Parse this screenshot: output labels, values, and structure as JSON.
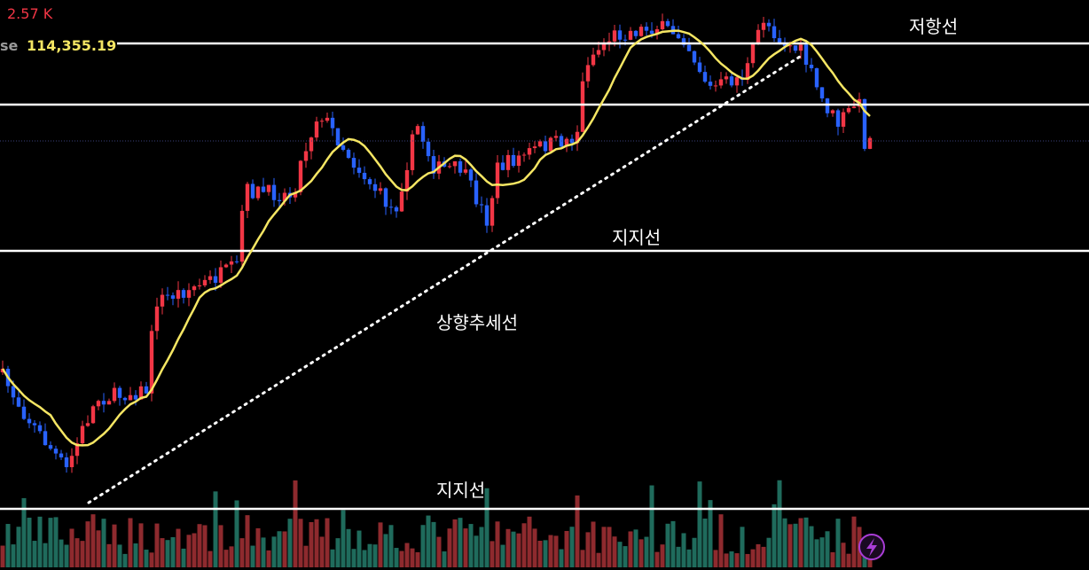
{
  "header": {
    "volume": "2.57 K",
    "price_label": "se",
    "price": "114,355.19"
  },
  "annotations": {
    "resistance": "저항선",
    "support_upper": "지지선",
    "uptrend": "상향추세선",
    "support_volume": "지지선"
  }
}
